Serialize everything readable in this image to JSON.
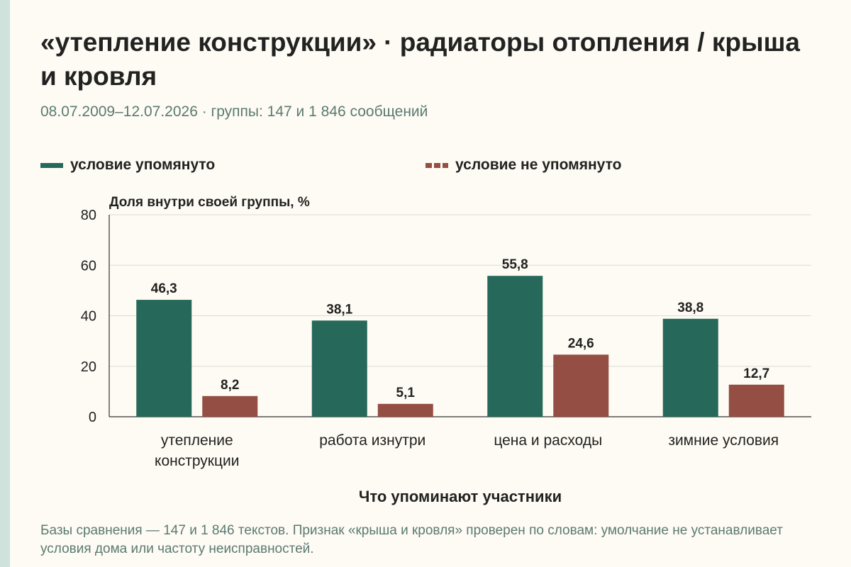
{
  "title": "«утепление конструкции» · радиаторы отопления / крыша и кровля",
  "subtitle": "08.07.2009–12.07.2026 · группы: 147 и 1 846 сообщений",
  "footnote": "Базы сравнения — 147 и 1 846 текстов. Признак «крыша и кровля» проверен по словам: умолчание не устанавливает условия дома или частоту неисправностей.",
  "colors": {
    "background": "#fdfbf3",
    "mentioned": "#26695a",
    "not_mentioned": "#944e44",
    "grid": "#dcdcd4"
  },
  "chart_data": {
    "type": "bar",
    "ylabel": "Доля внутри своей группы, %",
    "xlabel": "Что упоминают участники",
    "ylim": [
      0,
      80
    ],
    "yticks": [
      "0",
      "20",
      "40",
      "60",
      "80"
    ],
    "grid": true,
    "legend_position": "top",
    "categories": [
      "утепление конструкции",
      "работа изнутри",
      "цена и расходы",
      "зимние условия"
    ],
    "series": [
      {
        "name": "условие упомянуто",
        "values": [
          46.3,
          38.1,
          55.8,
          38.8
        ],
        "labels": [
          "46,3",
          "38,1",
          "55,8",
          "38,8"
        ]
      },
      {
        "name": "условие не упомянуто",
        "values": [
          8.2,
          5.1,
          24.6,
          12.7
        ],
        "labels": [
          "8,2",
          "5,1",
          "24,6",
          "12,7"
        ]
      }
    ]
  }
}
